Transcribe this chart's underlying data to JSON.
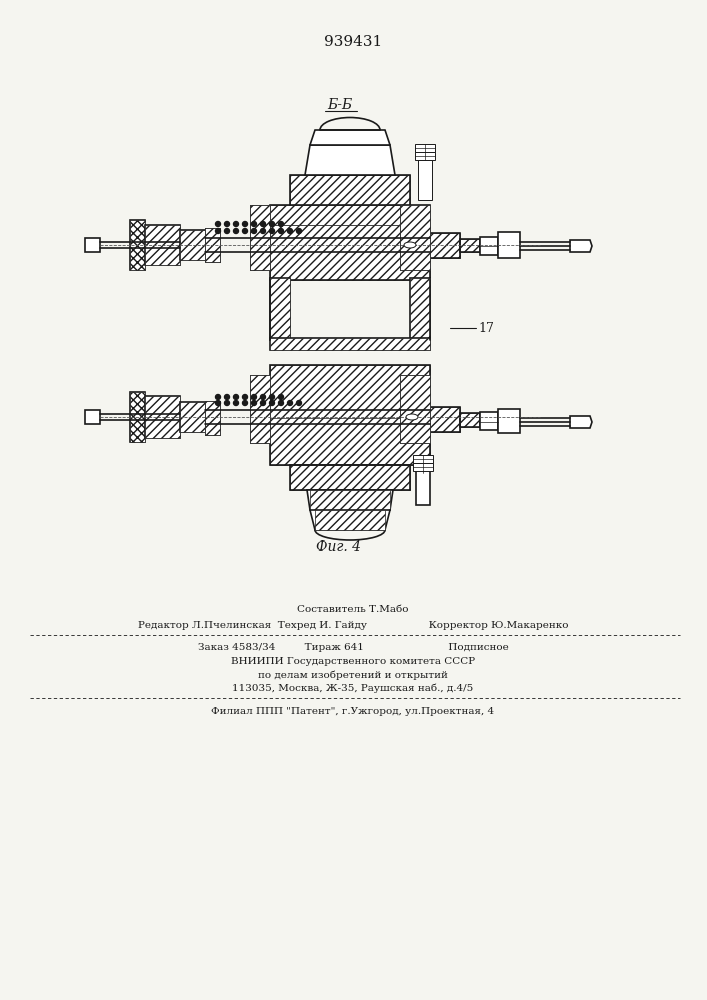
{
  "patent_number": "939431",
  "fig_label": "Фиг. 4",
  "section_label": "Б-Б",
  "label_17": "17",
  "footer_line1": "Составитель Т.Мабо",
  "footer_line2": "Редактор Л.Пчелинская  Техред И. Гайду                   Корректор Ю.Макаренко",
  "footer_line3": "Заказ 4583/34         Тираж 641                          Подписное",
  "footer_line4": "ВНИИПИ Государственного комитета СССР",
  "footer_line5": "по делам изобретений и открытий",
  "footer_line6": "113035, Москва, Ж-35, Раушская наб., д.4/5",
  "footer_line7": "Филиал ППП \"Патент\", г.Ужгород, ул.Проектная, 4",
  "bg_color": "#f5f5f0",
  "line_color": "#1a1a1a",
  "hatch_color": "#1a1a1a"
}
